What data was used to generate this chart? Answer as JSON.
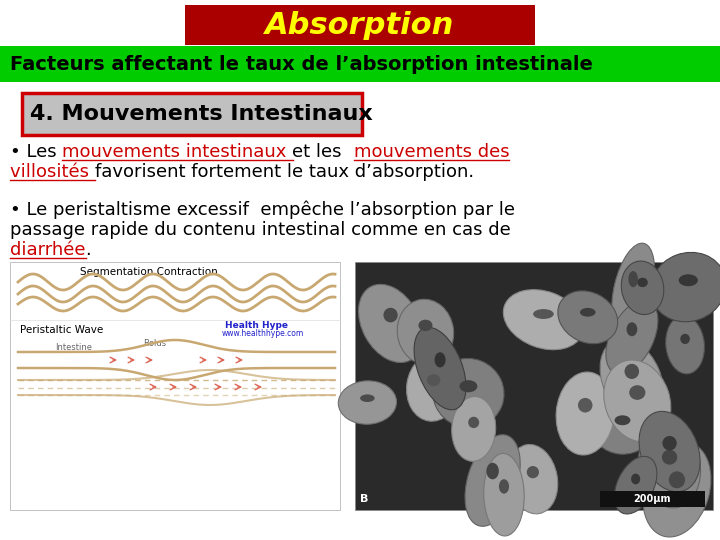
{
  "bg_color": "#ffffff",
  "title_text": "Absorption",
  "title_bg": "#aa0000",
  "title_fg": "#ffff00",
  "subtitle_text": "Facteurs affectant le taux de l’absorption intestinale",
  "subtitle_bg": "#00cc00",
  "subtitle_fg": "#000000",
  "box_text": "4. Mouvements Intestinaux",
  "box_bg": "#c0c0c0",
  "box_border": "#cc0000",
  "link_color": "#cc0000",
  "text_color": "#000000",
  "font_size_title": 22,
  "font_size_subtitle": 14,
  "font_size_box": 16,
  "font_size_body": 13
}
